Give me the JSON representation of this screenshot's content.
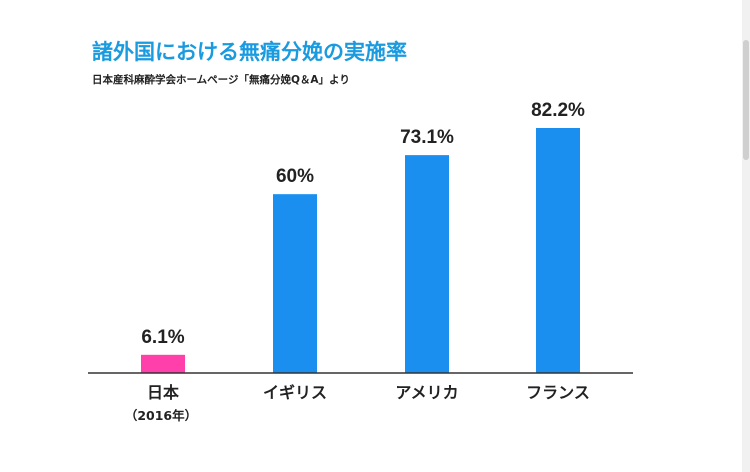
{
  "title": "諸外国における無痛分娩の実施率",
  "subtitle": "日本産科麻酔学会ホームページ「無痛分娩Q＆A」より",
  "colors": {
    "title": "#1a9be0",
    "bar_default": "#1a8ff0",
    "bar_highlight": "#ff3faa",
    "axis": "#333333"
  },
  "chart_data": {
    "type": "bar",
    "title": "諸外国における無痛分娩の実施率",
    "subtitle": "日本産科麻酔学会ホームページ「無痛分娩Q＆A」より",
    "categories": [
      "日本",
      "イギリス",
      "アメリカ",
      "フランス"
    ],
    "category_sublabels": [
      "（2016年）",
      "",
      "",
      ""
    ],
    "values": [
      6.1,
      60,
      73.1,
      82.2
    ],
    "data_labels": [
      "6.1%",
      "60%",
      "73.1%",
      "82.2%"
    ],
    "highlight_index": 0,
    "ylim": [
      0,
      100
    ],
    "grid": false,
    "xlabel": "",
    "ylabel": ""
  }
}
